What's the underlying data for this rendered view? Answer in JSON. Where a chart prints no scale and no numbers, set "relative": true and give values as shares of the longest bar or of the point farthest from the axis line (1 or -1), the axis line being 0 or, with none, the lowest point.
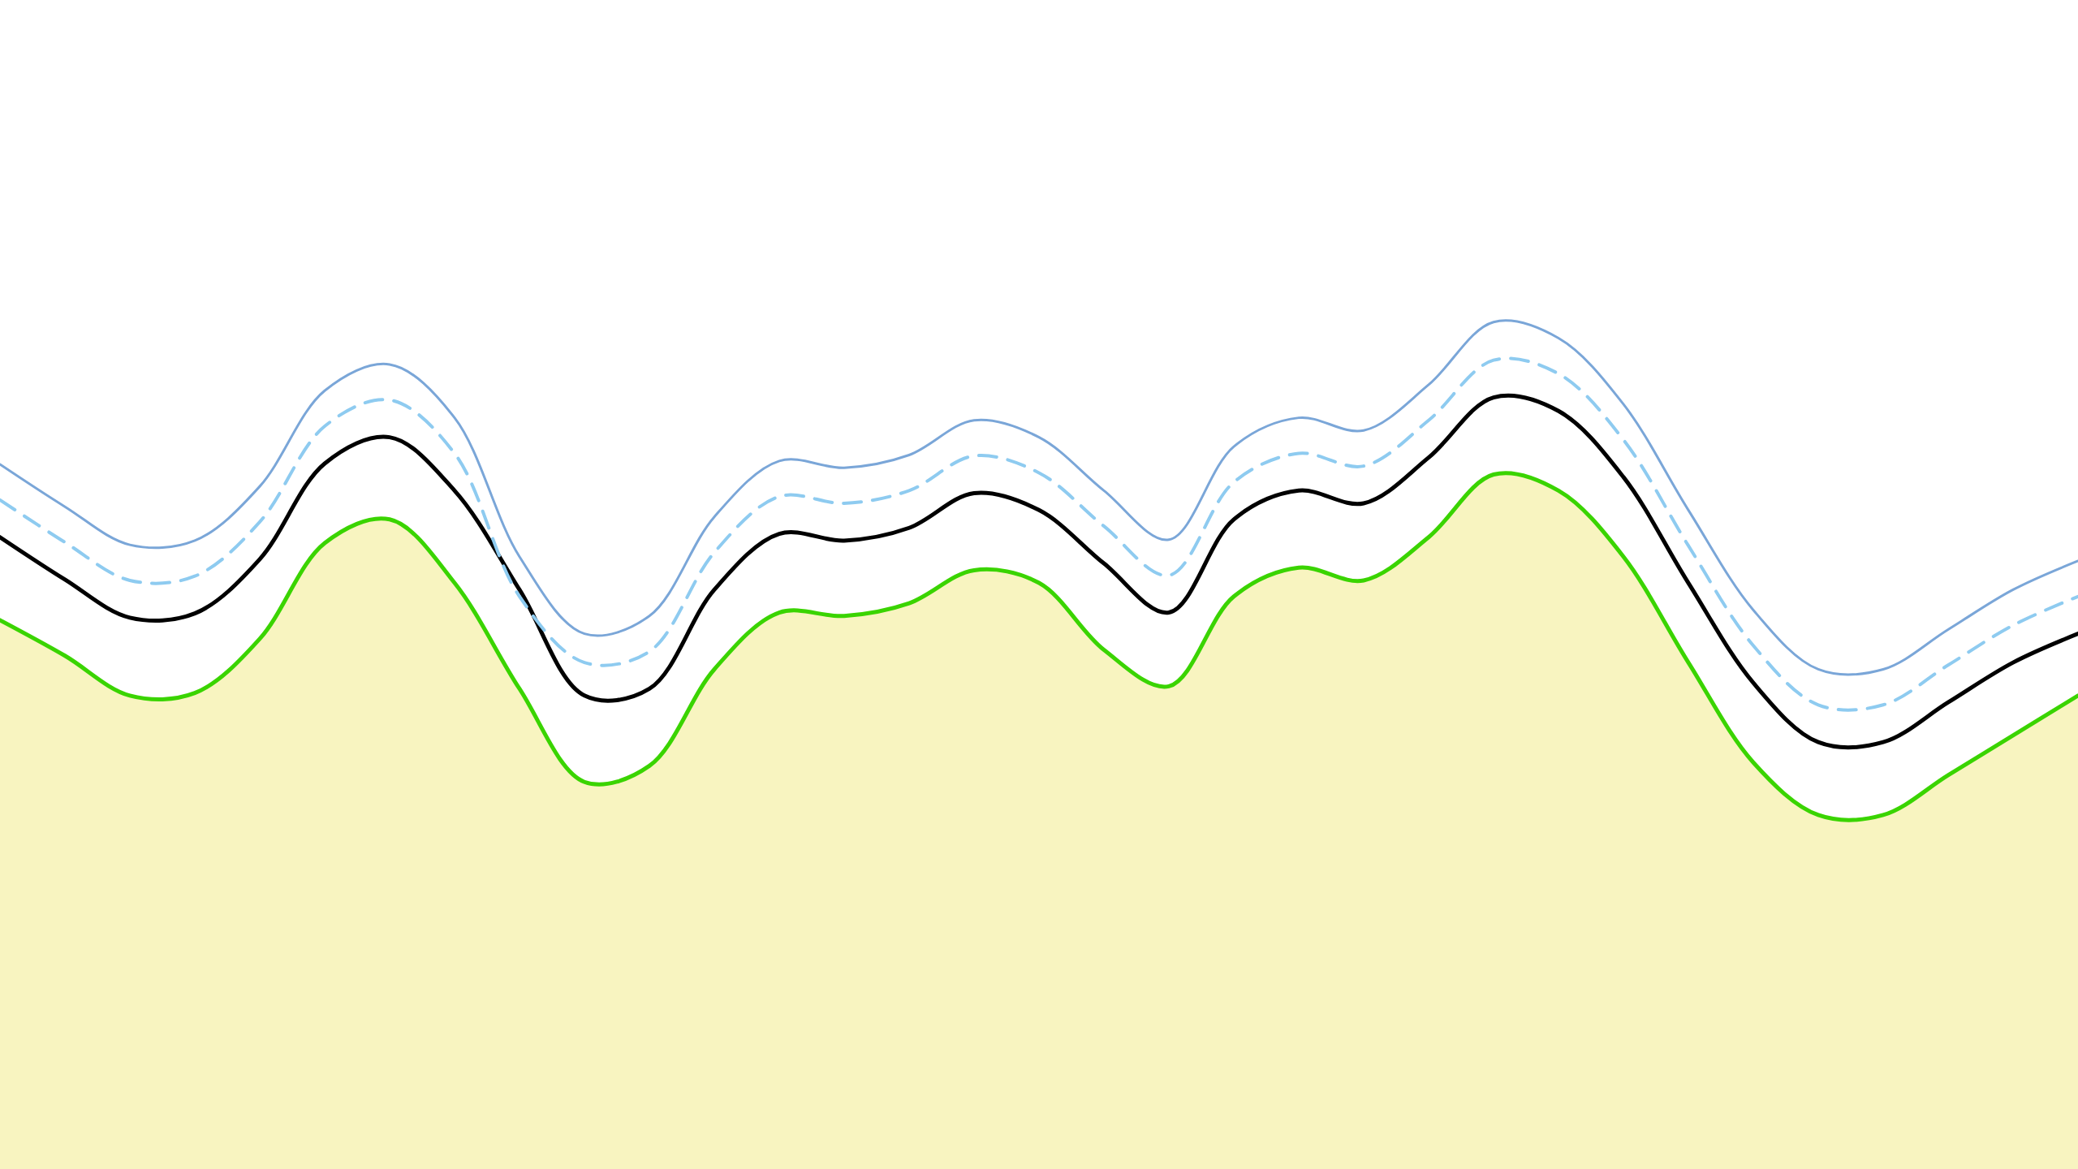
{
  "chart_data": {
    "type": "line",
    "relative": true,
    "categories": [
      null,
      null,
      null,
      null,
      null,
      null,
      null,
      null,
      null,
      null,
      null,
      null,
      null,
      null,
      null,
      null,
      null,
      null,
      null,
      null,
      null,
      null,
      null,
      null,
      null,
      null,
      null,
      null,
      null,
      null,
      null,
      null,
      null
    ],
    "series": [
      {
        "type": "area",
        "color": "#3ad400",
        "values": [
          0.648,
          0.606,
          0.559,
          0.562,
          0.626,
          0.739,
          0.767,
          0.692,
          0.567,
          0.457,
          0.476,
          0.59,
          0.657,
          0.653,
          0.668,
          0.707,
          0.692,
          0.613,
          0.57,
          0.676,
          0.71,
          0.695,
          0.746,
          0.82,
          0.801,
          0.723,
          0.598,
          0.48,
          0.418,
          0.418,
          0.465,
          0.512,
          0.559
        ]
      },
      {
        "color": "#000000",
        "values": [
          0.746,
          0.696,
          0.651,
          0.656,
          0.72,
          0.833,
          0.864,
          0.801,
          0.684,
          0.559,
          0.567,
          0.684,
          0.75,
          0.742,
          0.757,
          0.798,
          0.778,
          0.715,
          0.657,
          0.767,
          0.801,
          0.786,
          0.84,
          0.911,
          0.895,
          0.817,
          0.692,
          0.574,
          0.504,
          0.504,
          0.551,
          0.598,
          0.632
        ]
      },
      {
        "color": "#8ecbf0",
        "line_style": "dashed",
        "values": [
          0.79,
          0.74,
          0.695,
          0.7,
          0.764,
          0.877,
          0.908,
          0.845,
          0.676,
          0.598,
          0.611,
          0.728,
          0.794,
          0.786,
          0.801,
          0.842,
          0.822,
          0.759,
          0.701,
          0.811,
          0.845,
          0.83,
          0.884,
          0.955,
          0.939,
          0.861,
          0.736,
          0.618,
          0.548,
          0.548,
          0.595,
          0.642,
          0.676
        ]
      },
      {
        "color": "#7aa6d8",
        "values": [
          0.832,
          0.782,
          0.737,
          0.742,
          0.806,
          0.919,
          0.95,
          0.887,
          0.723,
          0.632,
          0.653,
          0.77,
          0.836,
          0.828,
          0.843,
          0.884,
          0.864,
          0.801,
          0.743,
          0.853,
          0.887,
          0.872,
          0.926,
          1.0,
          0.981,
          0.903,
          0.778,
          0.66,
          0.59,
          0.59,
          0.637,
          0.684,
          0.718
        ]
      }
    ]
  }
}
